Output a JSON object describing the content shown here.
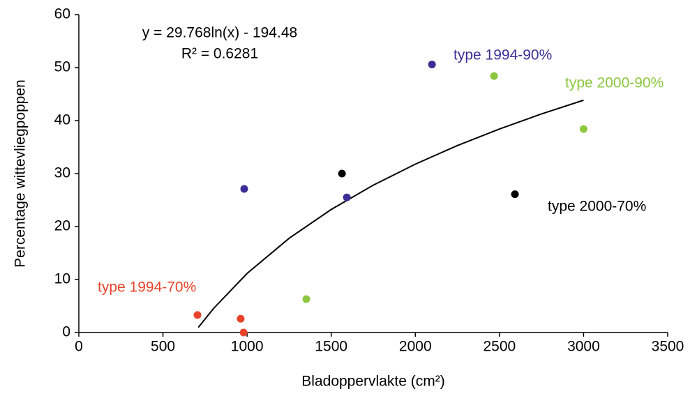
{
  "chart_data": {
    "type": "scatter",
    "x_label": "Bladoppervlakte (cm²)",
    "y_label": "Percentage wittevliegpoppen",
    "annotations": [
      "y = 29.768ln(x) - 194.48",
      "R² = 0.6281"
    ],
    "xlim": [
      0,
      3500
    ],
    "xticks": [
      0,
      500,
      1000,
      1500,
      2000,
      2500,
      3000,
      3500
    ],
    "ylim": [
      0,
      60
    ],
    "yticks": [
      0,
      10,
      20,
      30,
      40,
      50,
      60
    ],
    "series": [
      {
        "name": "type 1994-90%",
        "color": "#3a2f96",
        "x": [
          983,
          1593,
          2099
        ],
        "values": [
          27.1,
          25.5,
          50.6
        ]
      },
      {
        "name": "type 2000-90%",
        "color": "#8dc63f",
        "x": [
          1352,
          2468,
          3000
        ],
        "values": [
          6.3,
          48.4,
          38.4
        ]
      },
      {
        "name": "type 2000-70%",
        "color": "#000000",
        "x": [
          1564,
          2592
        ],
        "values": [
          30,
          26.1
        ]
      },
      {
        "name": "type 1994-70%",
        "color": "#e8432a",
        "x": [
          705,
          962,
          979
        ],
        "values": [
          3.3,
          2.6,
          0
        ]
      }
    ],
    "trendline": {
      "color": "#000000",
      "x": [
        710,
        800,
        1000,
        1250,
        1500,
        1750,
        2000,
        2250,
        2500,
        2750,
        3000
      ],
      "values": [
        0.96,
        4.51,
        11.15,
        17.79,
        23.22,
        27.81,
        31.78,
        35.29,
        38.42,
        41.26,
        43.85
      ]
    }
  }
}
